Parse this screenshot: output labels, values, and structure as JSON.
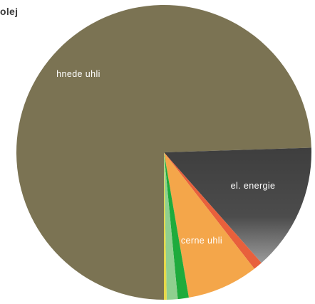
{
  "chart_data": {
    "type": "pie",
    "title": "olej",
    "slices": [
      {
        "name": "hnědé uhlí",
        "label": "hnede uhli",
        "value": 74.5,
        "color": "#7b7353"
      },
      {
        "name": "černé uhlí",
        "label": "cerne uhli",
        "value": 14.0,
        "color": "#4a4a4a"
      },
      {
        "name": "",
        "label": "",
        "value": 1.0,
        "color": "#e8603c"
      },
      {
        "name": "el. energie",
        "label": "el. energie",
        "value": 7.8,
        "color": "#f4a64a"
      },
      {
        "name": "",
        "label": "",
        "value": 1.2,
        "color": "#1eab3c"
      },
      {
        "name": "",
        "label": "",
        "value": 1.2,
        "color": "#8fcf8f"
      },
      {
        "name": "",
        "label": "",
        "value": 0.3,
        "color": "#e6d84a"
      }
    ]
  }
}
